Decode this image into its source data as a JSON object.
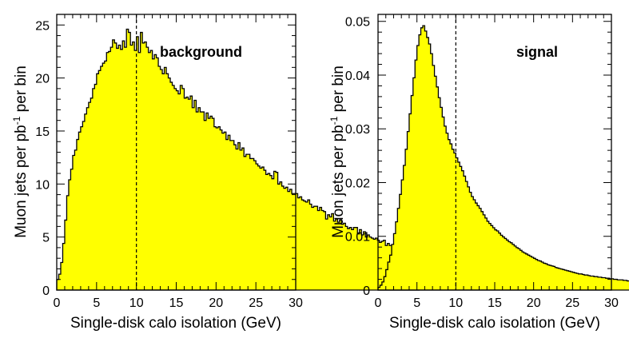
{
  "chart_data": [
    {
      "type": "histogram",
      "panel_label": "background",
      "xlabel": "Single-disk calo isolation (GeV)",
      "ylabel_main": "Muon jets per pb",
      "ylabel_sup": "-1",
      "ylabel_tail": " per bin",
      "xlim": [
        0,
        30
      ],
      "ylim": [
        0,
        26
      ],
      "xticks": [
        "0",
        "5",
        "10",
        "15",
        "20",
        "25",
        "30"
      ],
      "yticks": [
        "0",
        "5",
        "10",
        "15",
        "20",
        "25"
      ],
      "ytick_values": [
        0,
        5,
        10,
        15,
        20,
        25
      ],
      "cut_line_x": 10,
      "fill_color": "#ffff00",
      "bin_width": 0.25,
      "values": [
        1.0,
        1.5,
        2.6,
        4.4,
        6.6,
        8.9,
        10.4,
        11.4,
        12.7,
        13.2,
        14.2,
        14.9,
        15.4,
        15.9,
        16.6,
        17.2,
        17.7,
        18.1,
        19.0,
        19.4,
        20.4,
        20.7,
        21.1,
        21.4,
        21.6,
        22.4,
        22.5,
        22.9,
        23.6,
        23.3,
        22.8,
        23.1,
        22.7,
        23.5,
        22.9,
        24.6,
        24.3,
        23.1,
        23.4,
        22.6,
        23.9,
        22.4,
        24.3,
        23.3,
        23.4,
        22.9,
        22.4,
        22.6,
        21.8,
        22.2,
        21.9,
        21.1,
        20.8,
        20.4,
        21.0,
        20.4,
        20.0,
        19.6,
        19.3,
        19.0,
        18.8,
        18.5,
        19.3,
        19.0,
        18.1,
        18.2,
        18.0,
        18.3,
        17.2,
        17.9,
        16.8,
        17.2,
        16.8,
        16.8,
        16.0,
        16.7,
        16.2,
        16.4,
        16.2,
        15.4,
        15.3,
        15.4,
        15.1,
        14.8,
        14.9,
        14.2,
        14.6,
        14.1,
        14.1,
        13.7,
        13.3,
        13.9,
        13.2,
        13.4,
        12.6,
        12.8,
        12.8,
        12.4,
        12.4,
        12.2,
        11.9,
        11.7,
        11.5,
        11.6,
        11.3,
        10.9,
        11.0,
        10.8,
        10.5,
        11.2,
        11.1,
        10.0,
        10.2,
        9.8,
        9.6,
        9.7,
        9.3,
        9.5,
        9.1,
        9.1,
        9.1,
        8.7,
        8.8,
        8.5,
        8.4,
        8.3,
        8.5,
        8.1,
        7.8,
        7.9,
        7.9,
        7.5,
        7.8,
        7.5,
        7.4,
        6.7,
        7.1,
        6.9,
        7.2,
        6.5,
        6.7,
        6.4,
        6.6,
        6.2,
        6.3,
        6.0,
        5.8,
        5.9,
        5.7,
        5.9,
        5.9,
        5.3,
        5.7,
        5.2,
        5.5,
        5.0,
        5.2,
        5.0,
        4.9,
        4.8,
        4.9,
        4.7,
        4.5,
        4.6,
        4.7,
        4.2,
        4.4,
        4.2,
        4.2,
        3.9,
        4.0,
        4.4,
        3.9,
        3.8,
        4.0,
        3.7,
        3.9,
        3.7,
        3.6,
        3.9,
        3.5,
        3.7
      ]
    },
    {
      "type": "histogram",
      "panel_label": "signal",
      "xlabel": "Single-disk calo isolation (GeV)",
      "ylabel_main": "Muon jets per pb",
      "ylabel_sup": "-1",
      "ylabel_tail": " per bin",
      "xlim": [
        0,
        30
      ],
      "ylim": [
        0,
        0.0513
      ],
      "xticks": [
        "0",
        "5",
        "10",
        "15",
        "20",
        "25",
        "30"
      ],
      "yticks": [
        "0",
        "0.01",
        "0.02",
        "0.03",
        "0.04",
        "0.05"
      ],
      "ytick_values": [
        0,
        0.01,
        0.02,
        0.03,
        0.04,
        0.05
      ],
      "cut_line_x": 10,
      "fill_color": "#ffff00",
      "bin_width": 0.25,
      "values": [
        0.0005,
        0.0009,
        0.0015,
        0.0025,
        0.0038,
        0.0052,
        0.0065,
        0.0085,
        0.0105,
        0.0127,
        0.0152,
        0.0178,
        0.0205,
        0.0232,
        0.0262,
        0.0295,
        0.0328,
        0.0362,
        0.0395,
        0.0428,
        0.0455,
        0.0475,
        0.0488,
        0.0492,
        0.0482,
        0.047,
        0.0458,
        0.044,
        0.0418,
        0.0398,
        0.0378,
        0.0358,
        0.034,
        0.0322,
        0.0305,
        0.0292,
        0.028,
        0.0272,
        0.0262,
        0.0255,
        0.0246,
        0.0238,
        0.023,
        0.0222,
        0.0212,
        0.0202,
        0.0192,
        0.0182,
        0.0174,
        0.0168,
        0.0162,
        0.0157,
        0.0152,
        0.0146,
        0.014,
        0.0134,
        0.0128,
        0.0124,
        0.012,
        0.0116,
        0.0112,
        0.011,
        0.0106,
        0.0102,
        0.0099,
        0.0096,
        0.0093,
        0.009,
        0.0088,
        0.0085,
        0.0082,
        0.0079,
        0.0077,
        0.0074,
        0.0071,
        0.0069,
        0.0067,
        0.0065,
        0.0063,
        0.0061,
        0.0059,
        0.0057,
        0.0055,
        0.0054,
        0.0052,
        0.005,
        0.0049,
        0.0047,
        0.0046,
        0.0045,
        0.0044,
        0.0042,
        0.0041,
        0.004,
        0.0039,
        0.0038,
        0.0037,
        0.0036,
        0.0035,
        0.0034,
        0.0033,
        0.0032,
        0.0031,
        0.003,
        0.003,
        0.0029,
        0.0028,
        0.0028,
        0.0027,
        0.0026,
        0.0026,
        0.0025,
        0.0025,
        0.0024,
        0.0024,
        0.0023,
        0.0023,
        0.0022,
        0.0022,
        0.0021,
        0.0021,
        0.002,
        0.002,
        0.0019,
        0.0019,
        0.0019,
        0.0018,
        0.0018,
        0.0017,
        0.0017,
        0.0017,
        0.0016,
        0.0016,
        0.0016,
        0.0015,
        0.0015,
        0.0015,
        0.0014,
        0.0014,
        0.0014,
        0.0014,
        0.0013,
        0.0013,
        0.0013,
        0.0013,
        0.0012,
        0.0012,
        0.0012,
        0.0012,
        0.0011,
        0.0011,
        0.0011,
        0.0011,
        0.0011,
        0.001,
        0.001,
        0.001,
        0.001,
        0.001,
        0.0009,
        0.0009,
        0.0009,
        0.0009,
        0.0009,
        0.0009,
        0.0008,
        0.0008,
        0.0008,
        0.0008,
        0.0008,
        0.0008,
        0.0008,
        0.0007,
        0.0007,
        0.0007,
        0.0007,
        0.0007,
        0.0007,
        0.0007,
        0.0007
      ]
    }
  ]
}
